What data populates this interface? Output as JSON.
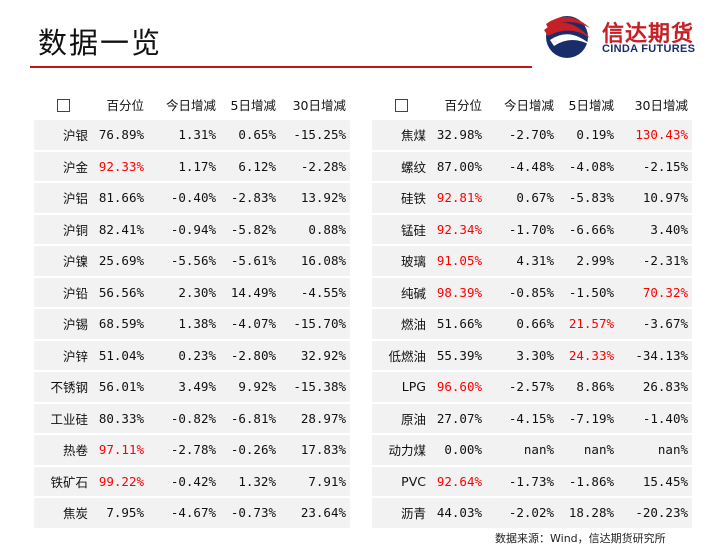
{
  "title": "数据一览",
  "logo": {
    "cn": "信达期货",
    "en": "CINDA FUTURES"
  },
  "headers": [
    "百分位",
    "今日增减",
    "5日增减",
    "30日增减"
  ],
  "left_table": [
    {
      "name": "沪银",
      "pct": "76.89%",
      "today": "1.31%",
      "d5": "0.65%",
      "d30": "-15.25%",
      "red": []
    },
    {
      "name": "沪金",
      "pct": "92.33%",
      "today": "1.17%",
      "d5": "6.12%",
      "d30": "-2.28%",
      "red": [
        "pct"
      ]
    },
    {
      "name": "沪铝",
      "pct": "81.66%",
      "today": "-0.40%",
      "d5": "-2.83%",
      "d30": "13.92%",
      "red": []
    },
    {
      "name": "沪铜",
      "pct": "82.41%",
      "today": "-0.94%",
      "d5": "-5.82%",
      "d30": "0.88%",
      "red": []
    },
    {
      "name": "沪镍",
      "pct": "25.69%",
      "today": "-5.56%",
      "d5": "-5.61%",
      "d30": "16.08%",
      "red": []
    },
    {
      "name": "沪铅",
      "pct": "56.56%",
      "today": "2.30%",
      "d5": "14.49%",
      "d30": "-4.55%",
      "red": []
    },
    {
      "name": "沪锡",
      "pct": "68.59%",
      "today": "1.38%",
      "d5": "-4.07%",
      "d30": "-15.70%",
      "red": []
    },
    {
      "name": "沪锌",
      "pct": "51.04%",
      "today": "0.23%",
      "d5": "-2.80%",
      "d30": "32.92%",
      "red": []
    },
    {
      "name": "不锈钢",
      "pct": "56.01%",
      "today": "3.49%",
      "d5": "9.92%",
      "d30": "-15.38%",
      "red": []
    },
    {
      "name": "工业硅",
      "pct": "80.33%",
      "today": "-0.82%",
      "d5": "-6.81%",
      "d30": "28.97%",
      "red": []
    },
    {
      "name": "热卷",
      "pct": "97.11%",
      "today": "-2.78%",
      "d5": "-0.26%",
      "d30": "17.83%",
      "red": [
        "pct"
      ]
    },
    {
      "name": "铁矿石",
      "pct": "99.22%",
      "today": "-0.42%",
      "d5": "1.32%",
      "d30": "7.91%",
      "red": [
        "pct"
      ]
    },
    {
      "name": "焦炭",
      "pct": "7.95%",
      "today": "-4.67%",
      "d5": "-0.73%",
      "d30": "23.64%",
      "red": []
    }
  ],
  "right_table": [
    {
      "name": "焦煤",
      "pct": "32.98%",
      "today": "-2.70%",
      "d5": "0.19%",
      "d30": "130.43%",
      "red": [
        "d30"
      ]
    },
    {
      "name": "螺纹",
      "pct": "87.00%",
      "today": "-4.48%",
      "d5": "-4.08%",
      "d30": "-2.15%",
      "red": []
    },
    {
      "name": "硅铁",
      "pct": "92.81%",
      "today": "0.67%",
      "d5": "-5.83%",
      "d30": "10.97%",
      "red": [
        "pct"
      ]
    },
    {
      "name": "锰硅",
      "pct": "92.34%",
      "today": "-1.70%",
      "d5": "-6.66%",
      "d30": "3.40%",
      "red": [
        "pct"
      ]
    },
    {
      "name": "玻璃",
      "pct": "91.05%",
      "today": "4.31%",
      "d5": "2.99%",
      "d30": "-2.31%",
      "red": [
        "pct"
      ]
    },
    {
      "name": "纯碱",
      "pct": "98.39%",
      "today": "-0.85%",
      "d5": "-1.50%",
      "d30": "70.32%",
      "red": [
        "pct",
        "d30"
      ]
    },
    {
      "name": "燃油",
      "pct": "51.66%",
      "today": "0.66%",
      "d5": "21.57%",
      "d30": "-3.67%",
      "red": [
        "d5"
      ]
    },
    {
      "name": "低燃油",
      "pct": "55.39%",
      "today": "3.30%",
      "d5": "24.33%",
      "d30": "-34.13%",
      "red": [
        "d5"
      ]
    },
    {
      "name": "LPG",
      "pct": "96.60%",
      "today": "-2.57%",
      "d5": "8.86%",
      "d30": "26.83%",
      "red": [
        "pct"
      ]
    },
    {
      "name": "原油",
      "pct": "27.07%",
      "today": "-4.15%",
      "d5": "-7.19%",
      "d30": "-1.40%",
      "red": []
    },
    {
      "name": "动力煤",
      "pct": "0.00%",
      "today": "nan%",
      "d5": "nan%",
      "d30": "nan%",
      "red": []
    },
    {
      "name": "PVC",
      "pct": "92.64%",
      "today": "-1.73%",
      "d5": "-1.86%",
      "d30": "15.45%",
      "red": [
        "pct"
      ]
    },
    {
      "name": "沥青",
      "pct": "44.03%",
      "today": "-2.02%",
      "d5": "18.28%",
      "d30": "-20.23%",
      "red": []
    }
  ],
  "source": "数据来源：Wind，信达期货研究所",
  "colors": {
    "accent_red": "#c41616",
    "highlight": "#ff0000",
    "row_bg": "#f2f2f2"
  }
}
